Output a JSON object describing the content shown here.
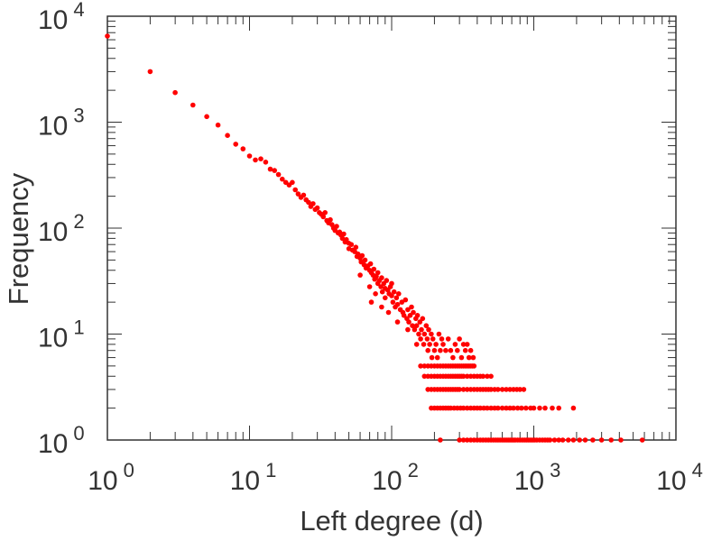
{
  "chart_data": {
    "type": "scatter",
    "title": "",
    "xlabel": "Left degree (d)",
    "ylabel": "Frequency",
    "xscale": "log",
    "yscale": "log",
    "xlim": [
      1,
      10000
    ],
    "ylim": [
      1,
      10000
    ],
    "grid": false,
    "legend": "none",
    "marker_color": "#ff0000",
    "x_tick_labels": [
      {
        "base": "10",
        "exp": "0"
      },
      {
        "base": "10",
        "exp": "1"
      },
      {
        "base": "10",
        "exp": "2"
      },
      {
        "base": "10",
        "exp": "3"
      },
      {
        "base": "10",
        "exp": "4"
      }
    ],
    "y_tick_labels": [
      {
        "base": "10",
        "exp": "0"
      },
      {
        "base": "10",
        "exp": "1"
      },
      {
        "base": "10",
        "exp": "2"
      },
      {
        "base": "10",
        "exp": "3"
      },
      {
        "base": "10",
        "exp": "4"
      }
    ],
    "points": [
      [
        1,
        6500
      ],
      [
        2,
        3000
      ],
      [
        3,
        1900
      ],
      [
        4,
        1450
      ],
      [
        5,
        1130
      ],
      [
        6,
        940
      ],
      [
        7,
        750
      ],
      [
        8,
        620
      ],
      [
        9,
        560
      ],
      [
        10,
        480
      ],
      [
        11,
        440
      ],
      [
        12,
        450
      ],
      [
        13,
        420
      ],
      [
        14,
        360
      ],
      [
        15,
        350
      ],
      [
        16,
        320
      ],
      [
        17,
        290
      ],
      [
        18,
        270
      ],
      [
        19,
        255
      ],
      [
        20,
        270
      ],
      [
        21,
        230
      ],
      [
        22,
        210
      ],
      [
        23,
        195
      ],
      [
        24,
        205
      ],
      [
        25,
        185
      ],
      [
        26,
        175
      ],
      [
        27,
        160
      ],
      [
        28,
        170
      ],
      [
        29,
        150
      ],
      [
        30,
        155
      ],
      [
        31,
        140
      ],
      [
        32,
        135
      ],
      [
        33,
        128
      ],
      [
        34,
        140
      ],
      [
        35,
        118
      ],
      [
        36,
        112
      ],
      [
        37,
        120
      ],
      [
        38,
        108
      ],
      [
        39,
        100
      ],
      [
        40,
        95
      ],
      [
        41,
        104
      ],
      [
        42,
        90
      ],
      [
        43,
        92
      ],
      [
        44,
        86
      ],
      [
        45,
        80
      ],
      [
        46,
        88
      ],
      [
        47,
        74
      ],
      [
        48,
        78
      ],
      [
        50,
        72
      ],
      [
        50,
        64
      ],
      [
        52,
        70
      ],
      [
        53,
        62
      ],
      [
        55,
        60
      ],
      [
        56,
        66
      ],
      [
        57,
        54
      ],
      [
        58,
        57
      ],
      [
        60,
        52
      ],
      [
        61,
        48
      ],
      [
        62,
        55
      ],
      [
        64,
        45
      ],
      [
        65,
        50
      ],
      [
        66,
        42
      ],
      [
        68,
        44
      ],
      [
        70,
        40
      ],
      [
        71,
        46
      ],
      [
        72,
        38
      ],
      [
        74,
        36
      ],
      [
        75,
        41
      ],
      [
        76,
        33
      ],
      [
        78,
        35
      ],
      [
        80,
        30
      ],
      [
        80,
        38
      ],
      [
        82,
        32
      ],
      [
        84,
        28
      ],
      [
        85,
        34
      ],
      [
        86,
        25
      ],
      [
        88,
        30
      ],
      [
        90,
        27
      ],
      [
        90,
        22
      ],
      [
        92,
        32
      ],
      [
        94,
        26
      ],
      [
        96,
        24
      ],
      [
        98,
        28
      ],
      [
        100,
        23
      ],
      [
        100,
        30
      ],
      [
        102,
        20
      ],
      [
        104,
        25
      ],
      [
        106,
        18
      ],
      [
        108,
        22
      ],
      [
        110,
        19
      ],
      [
        112,
        24
      ],
      [
        115,
        17
      ],
      [
        118,
        20
      ],
      [
        120,
        16
      ],
      [
        122,
        15
      ],
      [
        125,
        21
      ],
      [
        128,
        14
      ],
      [
        130,
        17
      ],
      [
        132,
        13
      ],
      [
        135,
        15
      ],
      [
        138,
        18
      ],
      [
        140,
        12
      ],
      [
        142,
        16
      ],
      [
        145,
        11
      ],
      [
        148,
        14
      ],
      [
        150,
        12
      ],
      [
        152,
        15
      ],
      [
        155,
        10
      ],
      [
        158,
        13
      ],
      [
        160,
        9
      ],
      [
        162,
        11
      ],
      [
        165,
        14
      ],
      [
        168,
        8
      ],
      [
        170,
        10
      ],
      [
        175,
        12
      ],
      [
        178,
        9
      ],
      [
        180,
        7
      ],
      [
        182,
        11
      ],
      [
        185,
        8
      ],
      [
        190,
        10
      ],
      [
        192,
        6
      ],
      [
        195,
        9
      ],
      [
        200,
        7
      ],
      [
        205,
        8
      ],
      [
        210,
        6
      ],
      [
        215,
        10
      ],
      [
        220,
        7
      ],
      [
        225,
        9
      ],
      [
        230,
        8
      ],
      [
        240,
        7
      ],
      [
        250,
        9
      ],
      [
        260,
        7
      ],
      [
        270,
        6
      ],
      [
        280,
        8
      ],
      [
        290,
        7
      ],
      [
        300,
        9
      ],
      [
        310,
        6
      ],
      [
        320,
        8
      ],
      [
        330,
        7
      ],
      [
        340,
        8
      ],
      [
        350,
        6
      ],
      [
        360,
        7
      ],
      [
        375,
        6
      ],
      [
        85,
        18
      ],
      [
        95,
        16
      ],
      [
        70,
        28
      ],
      [
        60,
        36
      ],
      [
        77,
        24
      ],
      [
        110,
        13
      ],
      [
        130,
        11
      ],
      [
        72,
        20
      ],
      [
        150,
        8
      ],
      [
        160,
        5
      ],
      [
        170,
        5
      ],
      [
        180,
        5
      ],
      [
        190,
        5
      ],
      [
        200,
        5
      ],
      [
        210,
        5
      ],
      [
        220,
        5
      ],
      [
        230,
        5
      ],
      [
        240,
        5
      ],
      [
        250,
        5
      ],
      [
        260,
        5
      ],
      [
        270,
        5
      ],
      [
        280,
        5
      ],
      [
        290,
        5
      ],
      [
        300,
        5
      ],
      [
        310,
        5
      ],
      [
        320,
        5
      ],
      [
        330,
        5
      ],
      [
        340,
        5
      ],
      [
        350,
        5
      ],
      [
        360,
        5
      ],
      [
        370,
        5
      ],
      [
        380,
        5
      ],
      [
        170,
        4
      ],
      [
        180,
        4
      ],
      [
        190,
        4
      ],
      [
        200,
        4
      ],
      [
        210,
        4
      ],
      [
        220,
        4
      ],
      [
        230,
        4
      ],
      [
        240,
        4
      ],
      [
        250,
        4
      ],
      [
        260,
        4
      ],
      [
        270,
        4
      ],
      [
        280,
        4
      ],
      [
        290,
        4
      ],
      [
        300,
        4
      ],
      [
        310,
        4
      ],
      [
        320,
        4
      ],
      [
        340,
        4
      ],
      [
        360,
        4
      ],
      [
        380,
        4
      ],
      [
        400,
        4
      ],
      [
        420,
        4
      ],
      [
        440,
        4
      ],
      [
        470,
        4
      ],
      [
        500,
        4
      ],
      [
        180,
        3
      ],
      [
        190,
        3
      ],
      [
        200,
        3
      ],
      [
        210,
        3
      ],
      [
        220,
        3
      ],
      [
        230,
        3
      ],
      [
        240,
        3
      ],
      [
        250,
        3
      ],
      [
        260,
        3
      ],
      [
        270,
        3
      ],
      [
        280,
        3
      ],
      [
        290,
        3
      ],
      [
        300,
        3
      ],
      [
        320,
        3
      ],
      [
        340,
        3
      ],
      [
        360,
        3
      ],
      [
        380,
        3
      ],
      [
        400,
        3
      ],
      [
        420,
        3
      ],
      [
        440,
        3
      ],
      [
        460,
        3
      ],
      [
        480,
        3
      ],
      [
        500,
        3
      ],
      [
        530,
        3
      ],
      [
        560,
        3
      ],
      [
        600,
        3
      ],
      [
        640,
        3
      ],
      [
        680,
        3
      ],
      [
        720,
        3
      ],
      [
        760,
        3
      ],
      [
        800,
        3
      ],
      [
        850,
        3
      ],
      [
        190,
        2
      ],
      [
        200,
        2
      ],
      [
        210,
        2
      ],
      [
        220,
        2
      ],
      [
        230,
        2
      ],
      [
        240,
        2
      ],
      [
        250,
        2
      ],
      [
        260,
        2
      ],
      [
        275,
        2
      ],
      [
        290,
        2
      ],
      [
        305,
        2
      ],
      [
        320,
        2
      ],
      [
        340,
        2
      ],
      [
        360,
        2
      ],
      [
        380,
        2
      ],
      [
        400,
        2
      ],
      [
        420,
        2
      ],
      [
        445,
        2
      ],
      [
        470,
        2
      ],
      [
        500,
        2
      ],
      [
        530,
        2
      ],
      [
        560,
        2
      ],
      [
        600,
        2
      ],
      [
        640,
        2
      ],
      [
        680,
        2
      ],
      [
        720,
        2
      ],
      [
        770,
        2
      ],
      [
        820,
        2
      ],
      [
        880,
        2
      ],
      [
        950,
        2
      ],
      [
        1000,
        2
      ],
      [
        1100,
        2
      ],
      [
        1200,
        2
      ],
      [
        1350,
        2
      ],
      [
        1500,
        2
      ],
      [
        1900,
        2
      ],
      [
        220,
        1
      ],
      [
        300,
        1
      ],
      [
        320,
        1
      ],
      [
        340,
        1
      ],
      [
        360,
        1
      ],
      [
        380,
        1
      ],
      [
        400,
        1
      ],
      [
        420,
        1
      ],
      [
        440,
        1
      ],
      [
        460,
        1
      ],
      [
        480,
        1
      ],
      [
        500,
        1
      ],
      [
        520,
        1
      ],
      [
        540,
        1
      ],
      [
        560,
        1
      ],
      [
        580,
        1
      ],
      [
        600,
        1
      ],
      [
        620,
        1
      ],
      [
        640,
        1
      ],
      [
        660,
        1
      ],
      [
        680,
        1
      ],
      [
        700,
        1
      ],
      [
        720,
        1
      ],
      [
        740,
        1
      ],
      [
        770,
        1
      ],
      [
        800,
        1
      ],
      [
        830,
        1
      ],
      [
        860,
        1
      ],
      [
        890,
        1
      ],
      [
        920,
        1
      ],
      [
        950,
        1
      ],
      [
        980,
        1
      ],
      [
        1010,
        1
      ],
      [
        1050,
        1
      ],
      [
        1100,
        1
      ],
      [
        1150,
        1
      ],
      [
        1200,
        1
      ],
      [
        1250,
        1
      ],
      [
        1300,
        1
      ],
      [
        1400,
        1
      ],
      [
        1500,
        1
      ],
      [
        1600,
        1
      ],
      [
        1750,
        1
      ],
      [
        1900,
        1
      ],
      [
        2100,
        1
      ],
      [
        2300,
        1
      ],
      [
        2600,
        1
      ],
      [
        3000,
        1
      ],
      [
        3500,
        1
      ],
      [
        4100,
        1
      ],
      [
        5800,
        1
      ]
    ]
  }
}
